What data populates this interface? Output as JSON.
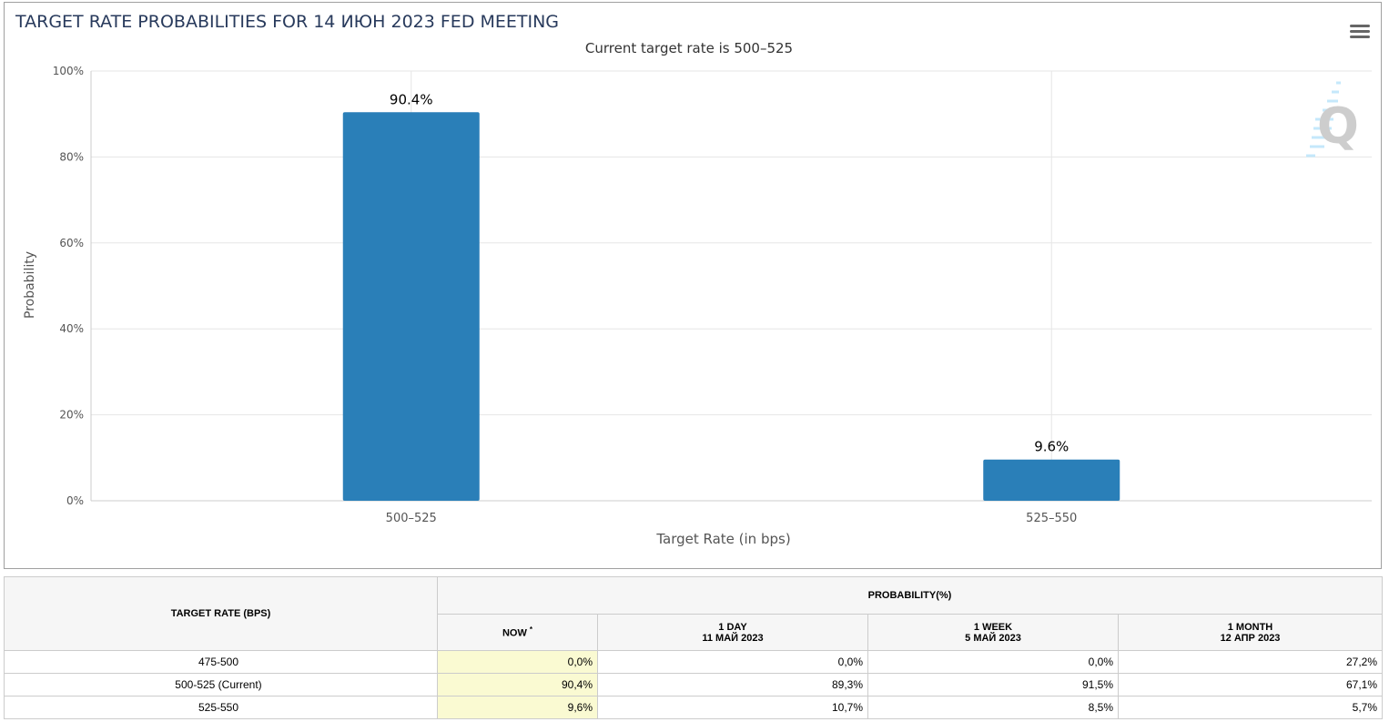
{
  "chart_data": {
    "type": "bar",
    "title": "TARGET RATE PROBABILITIES FOR 14 ИЮН 2023 FED MEETING",
    "subtitle": "Current target rate is 500–525",
    "categories": [
      "500–525",
      "525–550"
    ],
    "values": [
      90.4,
      9.6
    ],
    "data_labels": [
      "90.4%",
      "9.6%"
    ],
    "xlabel": "Target Rate (in bps)",
    "ylabel": "Probability",
    "ylim": [
      0,
      100
    ],
    "yticks": [
      0,
      20,
      40,
      60,
      80,
      100
    ],
    "ytick_labels": [
      "0%",
      "20%",
      "40%",
      "60%",
      "80%",
      "100%"
    ],
    "grid": true,
    "bar_color": "#2a7fb8"
  },
  "table": {
    "header_rate": "TARGET RATE (BPS)",
    "header_prob": "PROBABILITY(%)",
    "columns": [
      {
        "l1": "NOW",
        "l2": "",
        "sup": "*"
      },
      {
        "l1": "1 DAY",
        "l2": "11 МАЙ 2023"
      },
      {
        "l1": "1 WEEK",
        "l2": "5 МАЙ 2023"
      },
      {
        "l1": "1 MONTH",
        "l2": "12 АПР 2023"
      }
    ],
    "rows": [
      {
        "rate": "475-500",
        "v": [
          "0,0%",
          "0,0%",
          "0,0%",
          "27,2%"
        ]
      },
      {
        "rate": "500-525 (Current)",
        "v": [
          "90,4%",
          "89,3%",
          "91,5%",
          "67,1%"
        ]
      },
      {
        "rate": "525-550",
        "v": [
          "9,6%",
          "10,7%",
          "8,5%",
          "5,7%"
        ]
      }
    ]
  }
}
